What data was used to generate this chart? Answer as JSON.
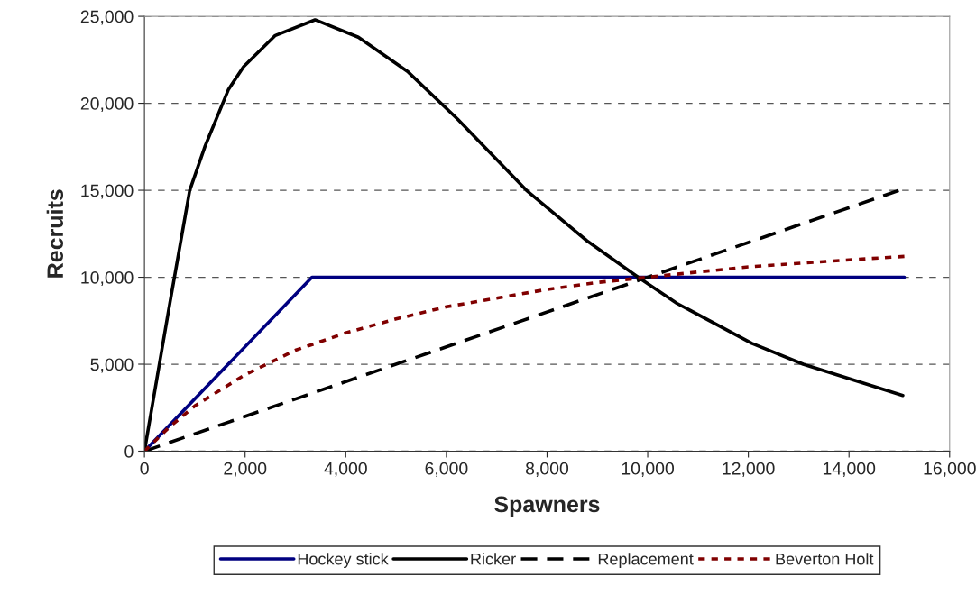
{
  "chart_data": {
    "type": "line",
    "xlabel": "Spawners",
    "ylabel": "Recruits",
    "xlim": [
      0,
      16000
    ],
    "xticks": [
      {
        "value": 0,
        "label": "0"
      },
      {
        "value": 2000,
        "label": "2,000"
      },
      {
        "value": 4000,
        "label": "4,000"
      },
      {
        "value": 6000,
        "label": "6,000"
      },
      {
        "value": 8000,
        "label": "8,000"
      },
      {
        "value": 10000,
        "label": "10,000"
      },
      {
        "value": 12000,
        "label": "12,000"
      },
      {
        "value": 14000,
        "label": "14,000"
      },
      {
        "value": 16000,
        "label": "16,000"
      }
    ],
    "ylim": [
      0,
      25000
    ],
    "yticks": [
      {
        "value": 0,
        "label": "0"
      },
      {
        "value": 5000,
        "label": "5,000"
      },
      {
        "value": 10000,
        "label": "10,000"
      },
      {
        "value": 15000,
        "label": "15,000"
      },
      {
        "value": 20000,
        "label": "20,000"
      },
      {
        "value": 25000,
        "label": "25,000"
      }
    ],
    "grid": "y",
    "legend": "bottom",
    "series": [
      {
        "name": "Hockey stick",
        "color": "#000080",
        "line_style": "solid",
        "x": [
          0,
          3330,
          15100
        ],
        "values": [
          0,
          10000,
          10000
        ]
      },
      {
        "name": "Ricker",
        "color": "#000000",
        "line_style": "solid",
        "x": [
          0,
          480,
          900,
          1200,
          1670,
          1970,
          2600,
          3390,
          4250,
          5240,
          6220,
          7590,
          8790,
          9810,
          10580,
          12070,
          13090,
          15070
        ],
        "values": [
          0,
          8100,
          15000,
          17500,
          20800,
          22100,
          23900,
          24800,
          23800,
          21800,
          19100,
          15000,
          12100,
          10000,
          8500,
          6200,
          5000,
          3200
        ]
      },
      {
        "name": "Replacement",
        "color": "#000000",
        "line_style": "dashed",
        "x": [
          0,
          15100
        ],
        "values": [
          0,
          15100
        ]
      },
      {
        "name": "Beverton Holt",
        "color": "#800000",
        "line_style": "dotted",
        "x": [
          0,
          500,
          1000,
          2000,
          3000,
          4000,
          5000,
          6000,
          7000,
          8000,
          9000,
          10000,
          12000,
          14000,
          15100
        ],
        "values": [
          0,
          1400,
          2600,
          4400,
          5800,
          6800,
          7600,
          8300,
          8800,
          9300,
          9700,
          10000,
          10600,
          11000,
          11200
        ]
      }
    ]
  }
}
